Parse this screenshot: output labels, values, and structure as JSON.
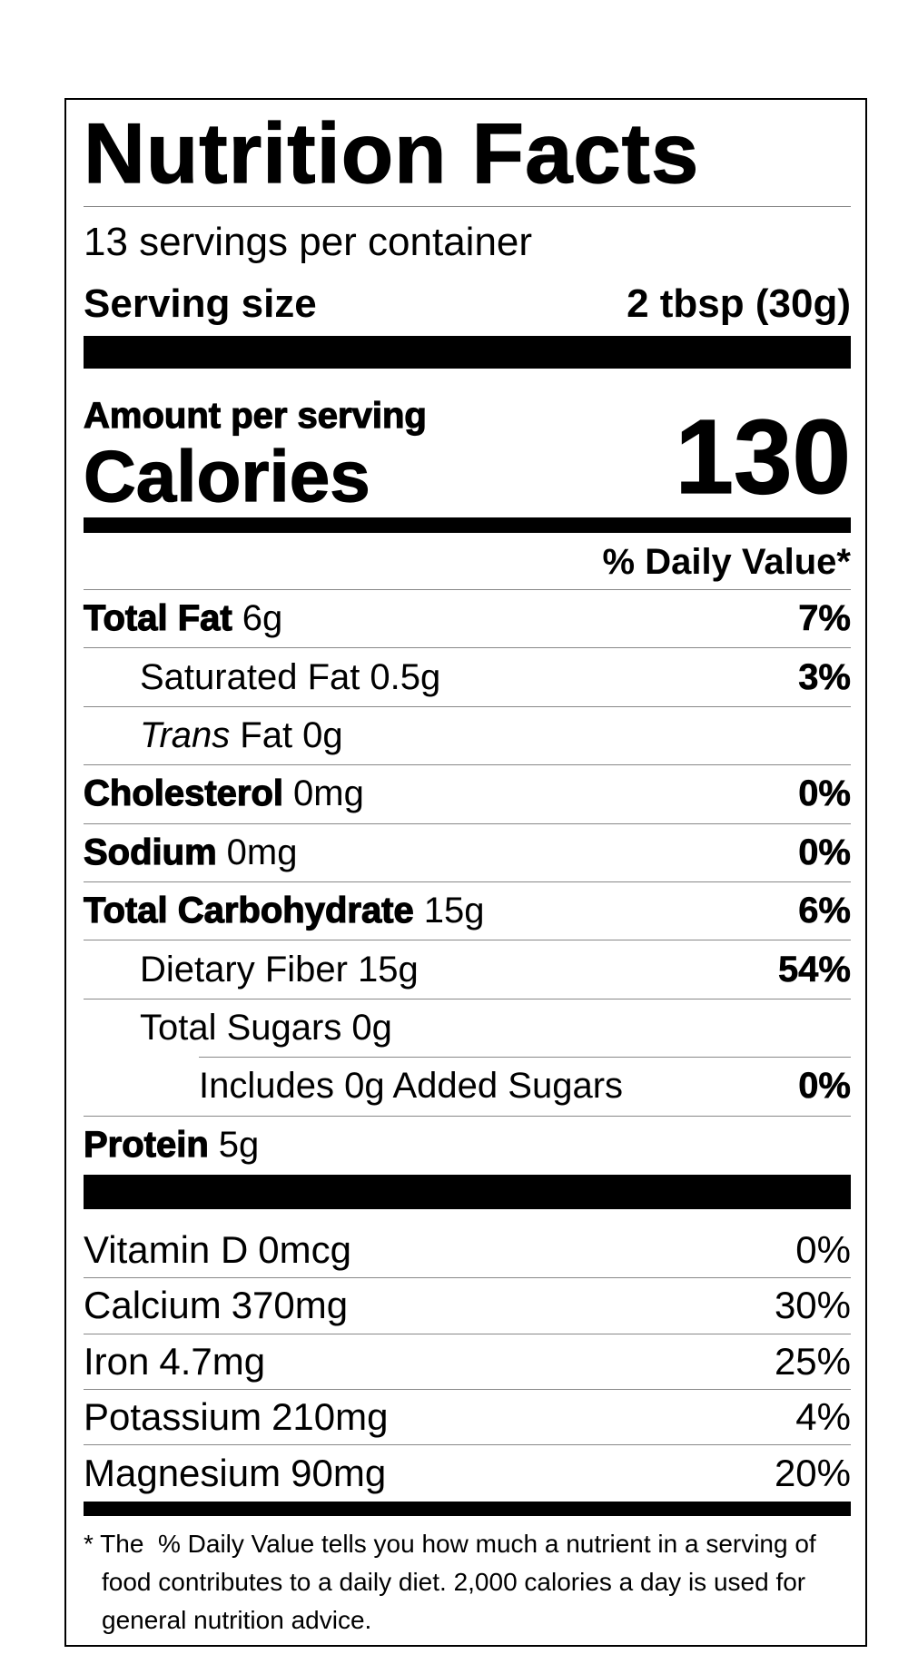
{
  "title": "Nutrition Facts",
  "servings": "13 servings per container",
  "serving_size": {
    "label": "Serving size",
    "value": "2 tbsp (30g)"
  },
  "amount_per_serving": "Amount per serving",
  "calories": {
    "label": "Calories",
    "value": "130"
  },
  "daily_value_header": "% Daily Value*",
  "nutrients": [
    {
      "name": "Total Fat",
      "amount": "6g",
      "dv": "7%"
    },
    {
      "name": "Saturated Fat",
      "amount": "0.5g",
      "dv": "3%"
    },
    {
      "name_prefix": "Trans",
      "name": "Fat",
      "amount": "0g"
    },
    {
      "name": "Cholesterol",
      "amount": "0mg",
      "dv": "0%"
    },
    {
      "name": "Sodium",
      "amount": "0mg",
      "dv": "0%"
    },
    {
      "name": "Total Carbohydrate",
      "amount": "15g",
      "dv": "6%"
    },
    {
      "name": "Dietary Fiber",
      "amount": "15g",
      "dv": "54%"
    },
    {
      "name": "Total Sugars",
      "amount": "0g"
    },
    {
      "name": "Includes 0g Added Sugars",
      "dv": "0%"
    },
    {
      "name": "Protein",
      "amount": "5g"
    }
  ],
  "vitamins": [
    {
      "name": "Vitamin D",
      "amount": "0mcg",
      "dv": "0%"
    },
    {
      "name": "Calcium",
      "amount": "370mg",
      "dv": "30%"
    },
    {
      "name": "Iron",
      "amount": "4.7mg",
      "dv": "25%"
    },
    {
      "name": "Potassium",
      "amount": "210mg",
      "dv": "4%"
    },
    {
      "name": "Magnesium",
      "amount": "90mg",
      "dv": "20%"
    }
  ],
  "footnote": "* The  % Daily Value tells you how much a nutrient in a serving of food contributes to a daily diet. 2,000 calories a day is used for general nutrition advice."
}
